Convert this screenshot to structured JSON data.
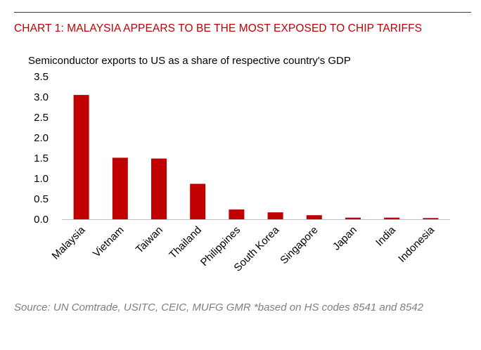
{
  "header": {
    "title": "CHART 1: MALAYSIA APPEARS TO BE THE MOST EXPOSED TO CHIP TARIFFS",
    "accent_color": "#c00000"
  },
  "footer": {
    "source": "Source: UN Comtrade, USITC, CEIC, MUFG GMR *based on HS codes 8541 and 8542"
  },
  "chart_data": {
    "type": "bar",
    "title": "Semiconductor exports to US as a share of respective country's GDP",
    "xlabel": "",
    "ylabel": "",
    "ylim": [
      0,
      3.5
    ],
    "yticks": [
      "0.0",
      "0.5",
      "1.0",
      "1.5",
      "2.0",
      "2.5",
      "3.0",
      "3.5"
    ],
    "categories": [
      "Malaysia",
      "Vietnam",
      "Taiwan",
      "Thailand",
      "Philippines",
      "South Korea",
      "Singapore",
      "Japan",
      "India",
      "Indonesia"
    ],
    "values": [
      3.05,
      1.51,
      1.49,
      0.87,
      0.24,
      0.17,
      0.1,
      0.04,
      0.04,
      0.03
    ],
    "bar_color": "#c00000",
    "grid": false,
    "legend": "none"
  }
}
